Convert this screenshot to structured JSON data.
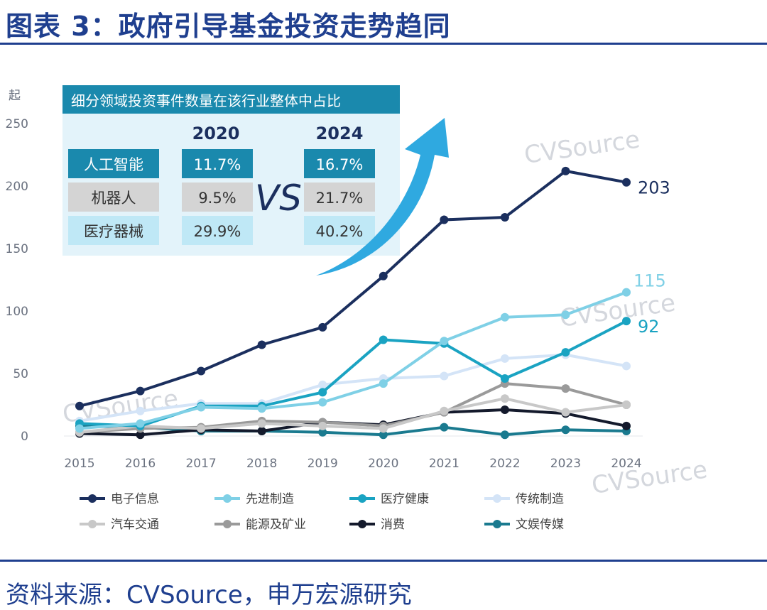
{
  "figure": {
    "title": "图表 3：政府引导基金投资走势趋同",
    "source": "资料来源：CVSource，申万宏源研究",
    "watermark": "CVSource"
  },
  "inset": {
    "title": "细分领域投资事件数量在该行业整体中占比",
    "year_left": "2020",
    "year_right": "2024",
    "vs": "VS",
    "rows": [
      {
        "label": "人工智能",
        "v2020": "11.7%",
        "v2024": "16.7%",
        "style": "dark"
      },
      {
        "label": "机器人",
        "v2020": "9.5%",
        "v2024": "21.7%",
        "style": "gray"
      },
      {
        "label": "医疗器械",
        "v2020": "29.9%",
        "v2024": "40.2%",
        "style": "light"
      }
    ]
  },
  "chart_data": {
    "type": "line",
    "title": "",
    "xlabel": "",
    "ylabel": "起",
    "ylim": [
      0,
      250
    ],
    "yticks": [
      0,
      50,
      100,
      150,
      200,
      250
    ],
    "x": [
      "2015",
      "2016",
      "2017",
      "2018",
      "2019",
      "2020",
      "2021",
      "2022",
      "2023",
      "2024"
    ],
    "series": [
      {
        "name": "电子信息",
        "color": "#1b2f5e",
        "values": [
          24,
          36,
          52,
          73,
          87,
          128,
          173,
          175,
          212,
          203
        ],
        "end_label": "203"
      },
      {
        "name": "先进制造",
        "color": "#7fd0e6",
        "values": [
          6,
          10,
          23,
          22,
          27,
          42,
          76,
          95,
          97,
          115
        ],
        "end_label": "115"
      },
      {
        "name": "医疗健康",
        "color": "#1aa3c2",
        "values": [
          10,
          8,
          24,
          24,
          35,
          77,
          74,
          46,
          67,
          92
        ],
        "end_label": "92"
      },
      {
        "name": "传统制造",
        "color": "#d4e4f7",
        "values": [
          12,
          20,
          26,
          26,
          41,
          46,
          48,
          62,
          65,
          56
        ]
      },
      {
        "name": "汽车交通",
        "color": "#c8c8c8",
        "values": [
          3,
          8,
          6,
          10,
          8,
          6,
          20,
          30,
          19,
          25
        ]
      },
      {
        "name": "能源及矿业",
        "color": "#9a9a9a",
        "values": [
          3,
          6,
          7,
          12,
          11,
          8,
          19,
          42,
          38,
          25
        ]
      },
      {
        "name": "消费",
        "color": "#141a2c",
        "values": [
          2,
          1,
          5,
          4,
          11,
          9,
          19,
          21,
          18,
          8
        ]
      },
      {
        "name": "文娱传媒",
        "color": "#1a7a8f",
        "values": [
          8,
          7,
          4,
          4,
          3,
          1,
          7,
          1,
          5,
          4
        ]
      }
    ]
  }
}
